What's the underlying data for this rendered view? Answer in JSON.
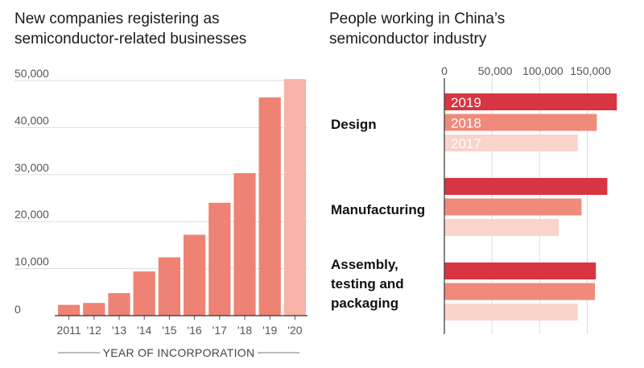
{
  "left_title_line1": "New companies registering as",
  "left_title_line2": "semiconductor-related businesses",
  "right_title_line1": "People working in China’s",
  "right_title_line2": "semiconductor industry",
  "colors": {
    "bar_main": "#ee8274",
    "bar_highlight": "#f7b3a8",
    "grid": "#dddddd",
    "year_2019": "#d63541",
    "year_2018": "#f08a7a",
    "year_2017": "#fad3cb"
  },
  "chart_data": [
    {
      "type": "bar",
      "title": "New companies registering as semiconductor-related businesses",
      "xlabel": "YEAR OF INCORPORATION",
      "ylabel": "",
      "categories": [
        "2011",
        "'12",
        "'13",
        "'14",
        "'15",
        "'16",
        "'17",
        "'18",
        "'19",
        "'20"
      ],
      "values": [
        2300,
        2700,
        4800,
        9400,
        12400,
        17200,
        24000,
        30300,
        46400,
        50300
      ],
      "ylim": [
        0,
        50000
      ],
      "yticks": [
        0,
        10000,
        20000,
        30000,
        40000,
        50000
      ],
      "ytick_labels": [
        "0",
        "10,000",
        "20,000",
        "30,000",
        "40,000",
        "50,000"
      ],
      "highlight_last": true,
      "grid": true
    },
    {
      "type": "bar",
      "orientation": "horizontal",
      "title": "People working in China’s semiconductor industry",
      "categories": [
        "Design",
        "Manufacturing",
        "Assembly, testing and packaging"
      ],
      "series": [
        {
          "name": "2019",
          "values": [
            181000,
            171000,
            159000
          ]
        },
        {
          "name": "2018",
          "values": [
            160000,
            144000,
            158000
          ]
        },
        {
          "name": "2017",
          "values": [
            140000,
            120000,
            140000
          ]
        }
      ],
      "xlim": [
        0,
        185000
      ],
      "xticks": [
        0,
        50000,
        100000,
        150000
      ],
      "xtick_labels": [
        "0",
        "50,000",
        "100,000",
        "150,000"
      ],
      "legend": "labels inside Design bars"
    }
  ]
}
